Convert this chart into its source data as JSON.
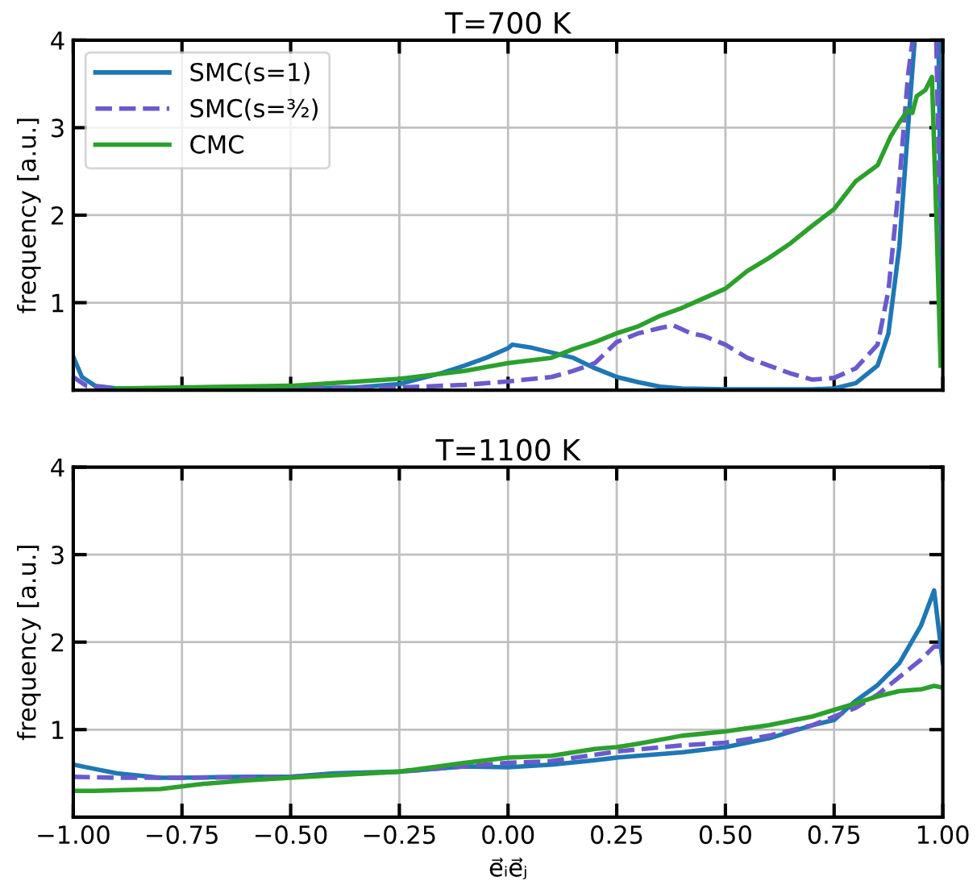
{
  "chart_data": [
    {
      "type": "line",
      "title": "T=700 K",
      "ylabel": "frequency [a.u.]",
      "xlim": [
        -1,
        1
      ],
      "ylim": [
        0,
        4
      ],
      "yticks": [
        1,
        2,
        3,
        4
      ],
      "xticks": [
        {
          "value": -1,
          "label": null
        },
        {
          "value": -0.75,
          "label": null
        },
        {
          "value": -0.5,
          "label": null
        },
        {
          "value": -0.25,
          "label": null
        },
        {
          "value": 0,
          "label": null
        },
        {
          "value": 0.25,
          "label": null
        },
        {
          "value": 0.5,
          "label": null
        },
        {
          "value": 0.75,
          "label": null
        },
        {
          "value": 1,
          "label": null
        }
      ],
      "tick_labels": "y",
      "grid": true,
      "legend": "top left",
      "series": [
        {
          "name": "SMC(s=1)",
          "color": "#1f77b4",
          "line_style": "solid",
          "x": [
            -1,
            -0.98,
            -0.95,
            -0.9,
            -0.75,
            -0.5,
            -0.35,
            -0.25,
            -0.15,
            -0.1,
            -0.05,
            0,
            0.01,
            0.05,
            0.1,
            0.15,
            0.2,
            0.25,
            0.3,
            0.35,
            0.4,
            0.5,
            0.7,
            0.75,
            0.8,
            0.85,
            0.875,
            0.9,
            0.92,
            0.935,
            0.96,
            0.99,
            1.0
          ],
          "values": [
            0.38,
            0.15,
            0.05,
            0.02,
            0.01,
            0.02,
            0.03,
            0.07,
            0.2,
            0.28,
            0.37,
            0.48,
            0.52,
            0.49,
            0.43,
            0.37,
            0.25,
            0.15,
            0.09,
            0.04,
            0.02,
            0.01,
            0.01,
            0.02,
            0.08,
            0.28,
            0.65,
            1.64,
            3.0,
            3.98,
            null,
            3.98,
            0.3
          ]
        },
        {
          "name": "SMC(s=³⁄₂)",
          "color": "#6a5acd",
          "line_style": "dashed",
          "x": [
            -1,
            -0.97,
            -0.9,
            -0.5,
            -0.25,
            -0.1,
            0,
            0.1,
            0.15,
            0.2,
            0.25,
            0.3,
            0.35,
            0.38,
            0.42,
            0.45,
            0.5,
            0.55,
            0.6,
            0.65,
            0.7,
            0.75,
            0.8,
            0.85,
            0.875,
            0.9,
            0.92,
            0.93,
            0.96,
            0.985,
            1.0
          ],
          "values": [
            0.15,
            0.05,
            0.02,
            0.02,
            0.03,
            0.06,
            0.1,
            0.15,
            0.22,
            0.31,
            0.55,
            0.65,
            0.71,
            0.74,
            0.65,
            0.62,
            0.52,
            0.37,
            0.28,
            0.19,
            0.12,
            0.14,
            0.25,
            0.52,
            1.14,
            2.38,
            3.6,
            3.98,
            null,
            3.98,
            0.3
          ]
        },
        {
          "name": "CMC",
          "color": "#2ca02c",
          "line_style": "solid",
          "x": [
            -0.9,
            -0.75,
            -0.5,
            -0.25,
            -0.1,
            0,
            0.1,
            0.15,
            0.2,
            0.25,
            0.3,
            0.35,
            0.4,
            0.45,
            0.5,
            0.55,
            0.6,
            0.65,
            0.7,
            0.75,
            0.8,
            0.85,
            0.88,
            0.9,
            0.92,
            0.93,
            0.94,
            0.96,
            0.975,
            0.985,
            0.995
          ],
          "values": [
            0.02,
            0.03,
            0.05,
            0.13,
            0.22,
            0.31,
            0.37,
            0.47,
            0.55,
            0.65,
            0.73,
            0.85,
            0.94,
            1.05,
            1.16,
            1.36,
            1.51,
            1.68,
            1.88,
            2.07,
            2.39,
            2.57,
            2.9,
            3.06,
            3.2,
            3.17,
            3.36,
            3.43,
            3.58,
            2.0,
            0.28
          ]
        }
      ]
    },
    {
      "type": "line",
      "title": "T=1100 K",
      "ylabel": "frequency [a.u.]",
      "xlabel": "e⃗ᵢe⃗ⱼ",
      "xlim": [
        -1,
        1
      ],
      "ylim": [
        0,
        4
      ],
      "yticks": [
        1,
        2,
        3,
        4
      ],
      "xticks": [
        {
          "value": -1,
          "label": "−1.00"
        },
        {
          "value": -0.75,
          "label": "−0.75"
        },
        {
          "value": -0.5,
          "label": "−0.50"
        },
        {
          "value": -0.25,
          "label": "−0.25"
        },
        {
          "value": 0,
          "label": "0.00"
        },
        {
          "value": 0.25,
          "label": "0.25"
        },
        {
          "value": 0.5,
          "label": "0.50"
        },
        {
          "value": 0.75,
          "label": "0.75"
        },
        {
          "value": 1,
          "label": "1.00"
        }
      ],
      "grid": true,
      "series": [
        {
          "color": "#1f77b4",
          "line_style": "solid",
          "x": [
            -1,
            -0.95,
            -0.9,
            -0.8,
            -0.75,
            -0.6,
            -0.5,
            -0.4,
            -0.25,
            -0.1,
            0,
            0.1,
            0.2,
            0.25,
            0.3,
            0.4,
            0.5,
            0.6,
            0.7,
            0.75,
            0.8,
            0.85,
            0.9,
            0.95,
            0.98,
            1.0
          ],
          "values": [
            0.6,
            0.55,
            0.5,
            0.45,
            0.45,
            0.46,
            0.46,
            0.5,
            0.52,
            0.58,
            0.57,
            0.6,
            0.65,
            0.68,
            0.7,
            0.74,
            0.8,
            0.9,
            1.05,
            1.11,
            1.33,
            1.51,
            1.76,
            2.19,
            2.59,
            1.76
          ]
        },
        {
          "color": "#6a5acd",
          "line_style": "dashed",
          "x": [
            -1,
            -0.9,
            -0.75,
            -0.5,
            -0.25,
            0,
            0.1,
            0.25,
            0.4,
            0.5,
            0.6,
            0.7,
            0.8,
            0.85,
            0.9,
            0.95,
            0.98,
            1.0
          ],
          "values": [
            0.46,
            0.45,
            0.45,
            0.46,
            0.52,
            0.62,
            0.64,
            0.75,
            0.82,
            0.85,
            0.93,
            1.05,
            1.25,
            1.4,
            1.6,
            1.8,
            1.95,
            1.95
          ]
        },
        {
          "color": "#2ca02c",
          "line_style": "solid",
          "x": [
            -1,
            -0.95,
            -0.8,
            -0.7,
            -0.6,
            -0.5,
            -0.25,
            -0.1,
            0,
            0.1,
            0.2,
            0.25,
            0.3,
            0.4,
            0.5,
            0.6,
            0.7,
            0.8,
            0.85,
            0.9,
            0.95,
            0.98,
            1.0
          ],
          "values": [
            0.3,
            0.3,
            0.32,
            0.38,
            0.42,
            0.45,
            0.52,
            0.62,
            0.68,
            0.7,
            0.78,
            0.8,
            0.84,
            0.93,
            0.98,
            1.05,
            1.15,
            1.3,
            1.38,
            1.44,
            1.46,
            1.5,
            1.48
          ]
        }
      ]
    }
  ]
}
